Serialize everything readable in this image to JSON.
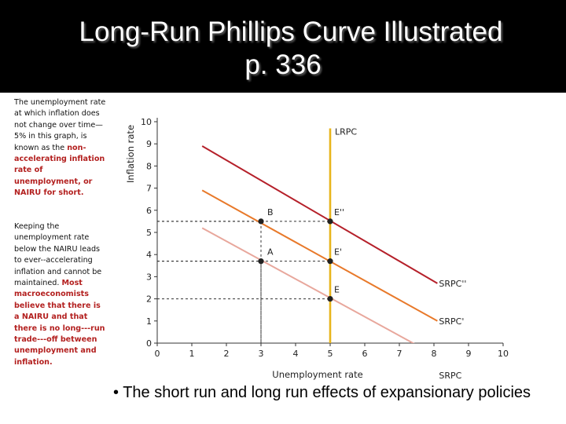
{
  "title": {
    "line1": "Long-Run Phillips Curve Illustrated",
    "line2": "p. 336"
  },
  "sidebar": {
    "para1_plain": "The unemployment rate at which inflation does not change over time—5% in this graph, is known as the ",
    "para1_emph": "non-accelerating inflation rate of unemployment, or NAIRU for short.",
    "para2_plain": "Keeping the unemployment rate below the NAIRU leads to ever--accelerating inflation and cannot be maintained. ",
    "para2_emph": "Most macroeconomists believe that there is a NAIRU and that there is no long---run trade---off between unemployment and inflation."
  },
  "bullet": {
    "text": "• The short run and long run effects of expansionary policies"
  },
  "colors": {
    "lrpc": "#e8b51c",
    "srpc_top": "#b5202a",
    "srpc_mid": "#e8792a",
    "srpc_low": "#e8a79c",
    "guide": "#333333",
    "point": "#222222"
  },
  "chart_data": {
    "type": "line",
    "xlabel": "Unemployment rate",
    "ylabel": "Inflation rate",
    "xlim": [
      0,
      10
    ],
    "ylim": [
      0,
      10
    ],
    "xticks": [
      "0",
      "1",
      "2",
      "3",
      "4",
      "5",
      "6",
      "7",
      "8",
      "9",
      "10"
    ],
    "yticks": [
      "0",
      "1",
      "2",
      "3",
      "4",
      "5",
      "6",
      "7",
      "8",
      "9",
      "10"
    ],
    "grid": false,
    "series": [
      {
        "name": "LRPC",
        "x": [
          5,
          5
        ],
        "y": [
          0,
          9.7
        ],
        "color": "#e8b51c"
      },
      {
        "name": "SRPC''",
        "x": [
          1.3,
          8.1
        ],
        "y": [
          8.9,
          2.7
        ],
        "color": "#b5202a"
      },
      {
        "name": "SRPC'",
        "x": [
          1.3,
          8.1
        ],
        "y": [
          6.9,
          1.0
        ],
        "color": "#e8792a"
      },
      {
        "name": "SRPC",
        "x": [
          1.3,
          8.1
        ],
        "y": [
          5.2,
          -0.6
        ],
        "color": "#e8a79c"
      }
    ],
    "points": [
      {
        "label": "B",
        "x": 3,
        "y": 5.5
      },
      {
        "label": "E''",
        "x": 5,
        "y": 5.5
      },
      {
        "label": "A",
        "x": 3,
        "y": 3.7
      },
      {
        "label": "E'",
        "x": 5,
        "y": 3.7
      },
      {
        "label": "E",
        "x": 5,
        "y": 2.0
      }
    ]
  }
}
